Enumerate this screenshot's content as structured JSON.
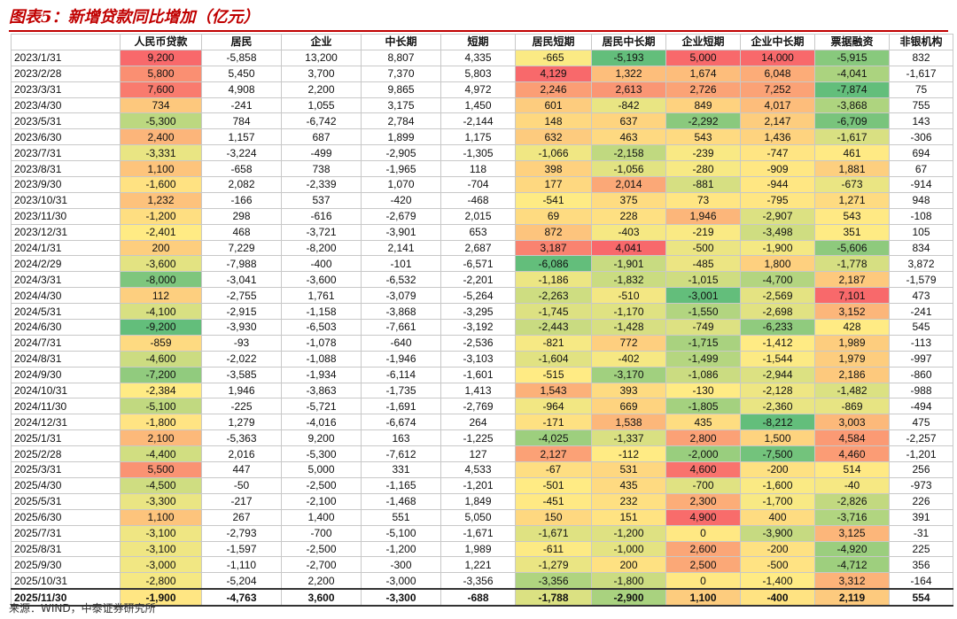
{
  "title": "图表5：新增贷款同比增加（亿元）",
  "source": "来源：WIND，中泰证券研究所",
  "columns": [
    "",
    "人民币贷款",
    "居民",
    "企业",
    "中长期",
    "短期",
    "居民短期",
    "居民中长期",
    "企业短期",
    "企业中长期",
    "票据融资",
    "非银机构"
  ],
  "heatmap_columns": [
    1,
    6,
    7,
    8,
    9,
    10
  ],
  "colors": {
    "low": "#63be7b",
    "mid": "#ffeb84",
    "high": "#f8696b"
  },
  "rows": [
    [
      "2023/1/31",
      "9,200",
      "-5,858",
      "13,200",
      "8,807",
      "4,335",
      "-665",
      "-5,193",
      "5,000",
      "14,000",
      "-5,915",
      "832"
    ],
    [
      "2023/2/28",
      "5,800",
      "5,450",
      "3,700",
      "7,370",
      "5,803",
      "4,129",
      "1,322",
      "1,674",
      "6,048",
      "-4,041",
      "-1,617"
    ],
    [
      "2023/3/31",
      "7,600",
      "4,908",
      "2,200",
      "9,865",
      "4,972",
      "2,246",
      "2,613",
      "2,726",
      "7,252",
      "-7,874",
      "75"
    ],
    [
      "2023/4/30",
      "734",
      "-241",
      "1,055",
      "3,175",
      "1,450",
      "601",
      "-842",
      "849",
      "4,017",
      "-3,868",
      "755"
    ],
    [
      "2023/5/31",
      "-5,300",
      "784",
      "-6,742",
      "2,784",
      "-2,144",
      "148",
      "637",
      "-2,292",
      "2,147",
      "-6,709",
      "143"
    ],
    [
      "2023/6/30",
      "2,400",
      "1,157",
      "687",
      "1,899",
      "1,175",
      "632",
      "463",
      "543",
      "1,436",
      "-1,617",
      "-306"
    ],
    [
      "2023/7/31",
      "-3,331",
      "-3,224",
      "-499",
      "-2,905",
      "-1,305",
      "-1,066",
      "-2,158",
      "-239",
      "-747",
      "461",
      "694"
    ],
    [
      "2023/8/31",
      "1,100",
      "-658",
      "738",
      "-1,965",
      "118",
      "398",
      "-1,056",
      "-280",
      "-909",
      "1,881",
      "67"
    ],
    [
      "2023/9/30",
      "-1,600",
      "2,082",
      "-2,339",
      "1,070",
      "-704",
      "177",
      "2,014",
      "-881",
      "-944",
      "-673",
      "-914"
    ],
    [
      "2023/10/31",
      "1,232",
      "-166",
      "537",
      "-420",
      "-468",
      "-541",
      "375",
      "73",
      "-795",
      "1,271",
      "948"
    ],
    [
      "2023/11/30",
      "-1,200",
      "298",
      "-616",
      "-2,679",
      "2,015",
      "69",
      "228",
      "1,946",
      "-2,907",
      "543",
      "-108"
    ],
    [
      "2023/12/31",
      "-2,401",
      "468",
      "-3,721",
      "-3,901",
      "653",
      "872",
      "-403",
      "-219",
      "-3,498",
      "351",
      "105"
    ],
    [
      "2024/1/31",
      "200",
      "7,229",
      "-8,200",
      "2,141",
      "2,687",
      "3,187",
      "4,041",
      "-500",
      "-1,900",
      "-5,606",
      "834"
    ],
    [
      "2024/2/29",
      "-3,600",
      "-7,988",
      "-400",
      "-101",
      "-6,571",
      "-6,086",
      "-1,901",
      "-485",
      "1,800",
      "-1,778",
      "3,872"
    ],
    [
      "2024/3/31",
      "-8,000",
      "-3,041",
      "-3,600",
      "-6,532",
      "-2,201",
      "-1,186",
      "-1,832",
      "-1,015",
      "-4,700",
      "2,187",
      "-1,579"
    ],
    [
      "2024/4/30",
      "112",
      "-2,755",
      "1,761",
      "-3,079",
      "-5,264",
      "-2,263",
      "-510",
      "-3,001",
      "-2,569",
      "7,101",
      "473"
    ],
    [
      "2024/5/31",
      "-4,100",
      "-2,915",
      "-1,158",
      "-3,868",
      "-3,295",
      "-1,745",
      "-1,170",
      "-1,550",
      "-2,698",
      "3,152",
      "-241"
    ],
    [
      "2024/6/30",
      "-9,200",
      "-3,930",
      "-6,503",
      "-7,661",
      "-3,192",
      "-2,443",
      "-1,428",
      "-749",
      "-6,233",
      "428",
      "545"
    ],
    [
      "2024/7/31",
      "-859",
      "-93",
      "-1,078",
      "-640",
      "-2,536",
      "-821",
      "772",
      "-1,715",
      "-1,412",
      "1,989",
      "-113"
    ],
    [
      "2024/8/31",
      "-4,600",
      "-2,022",
      "-1,088",
      "-1,946",
      "-3,103",
      "-1,604",
      "-402",
      "-1,499",
      "-1,544",
      "1,979",
      "-997"
    ],
    [
      "2024/9/30",
      "-7,200",
      "-3,585",
      "-1,934",
      "-6,114",
      "-1,601",
      "-515",
      "-3,170",
      "-1,086",
      "-2,944",
      "2,186",
      "-860"
    ],
    [
      "2024/10/31",
      "-2,384",
      "1,946",
      "-3,863",
      "-1,735",
      "1,413",
      "1,543",
      "393",
      "-130",
      "-2,128",
      "-1,482",
      "-988"
    ],
    [
      "2024/11/30",
      "-5,100",
      "-225",
      "-5,721",
      "-1,691",
      "-2,769",
      "-964",
      "669",
      "-1,805",
      "-2,360",
      "-869",
      "-494"
    ],
    [
      "2024/12/31",
      "-1,800",
      "1,279",
      "-4,016",
      "-6,674",
      "264",
      "-171",
      "1,538",
      "435",
      "-8,212",
      "3,003",
      "475"
    ],
    [
      "2025/1/31",
      "2,100",
      "-5,363",
      "9,200",
      "163",
      "-1,225",
      "-4,025",
      "-1,337",
      "2,800",
      "1,500",
      "4,584",
      "-2,257"
    ],
    [
      "2025/2/28",
      "-4,400",
      "2,016",
      "-5,300",
      "-7,612",
      "127",
      "2,127",
      "-112",
      "-2,000",
      "-7,500",
      "4,460",
      "-1,201"
    ],
    [
      "2025/3/31",
      "5,500",
      "447",
      "5,000",
      "331",
      "4,533",
      "-67",
      "531",
      "4,600",
      "-200",
      "514",
      "256"
    ],
    [
      "2025/4/30",
      "-4,500",
      "-50",
      "-2,500",
      "-1,165",
      "-1,201",
      "-501",
      "435",
      "-700",
      "-1,600",
      "-40",
      "-973"
    ],
    [
      "2025/5/31",
      "-3,300",
      "-217",
      "-2,100",
      "-1,468",
      "1,849",
      "-451",
      "232",
      "2,300",
      "-1,700",
      "-2,826",
      "226"
    ],
    [
      "2025/6/30",
      "1,100",
      "267",
      "1,400",
      "551",
      "5,050",
      "150",
      "151",
      "4,900",
      "400",
      "-3,716",
      "391"
    ],
    [
      "2025/7/31",
      "-3,100",
      "-2,793",
      "-700",
      "-5,100",
      "-1,671",
      "-1,671",
      "-1,200",
      "0",
      "-3,900",
      "3,125",
      "-31"
    ],
    [
      "2025/8/31",
      "-3,100",
      "-1,597",
      "-2,500",
      "-1,200",
      "1,989",
      "-611",
      "-1,000",
      "2,600",
      "-200",
      "-4,920",
      "225"
    ],
    [
      "2025/9/30",
      "-3,000",
      "-1,110",
      "-2,700",
      "-300",
      "1,221",
      "-1,279",
      "200",
      "2,500",
      "-500",
      "-4,712",
      "356"
    ],
    [
      "2025/10/31",
      "-2,800",
      "-5,204",
      "2,200",
      "-3,000",
      "-3,356",
      "-3,356",
      "-1,800",
      "0",
      "-1,400",
      "3,312",
      "-164"
    ],
    [
      "2025/11/30",
      "-1,900",
      "-4,763",
      "3,600",
      "-3,300",
      "-688",
      "-1,788",
      "-2,900",
      "1,100",
      "-400",
      "2,119",
      "554"
    ]
  ]
}
